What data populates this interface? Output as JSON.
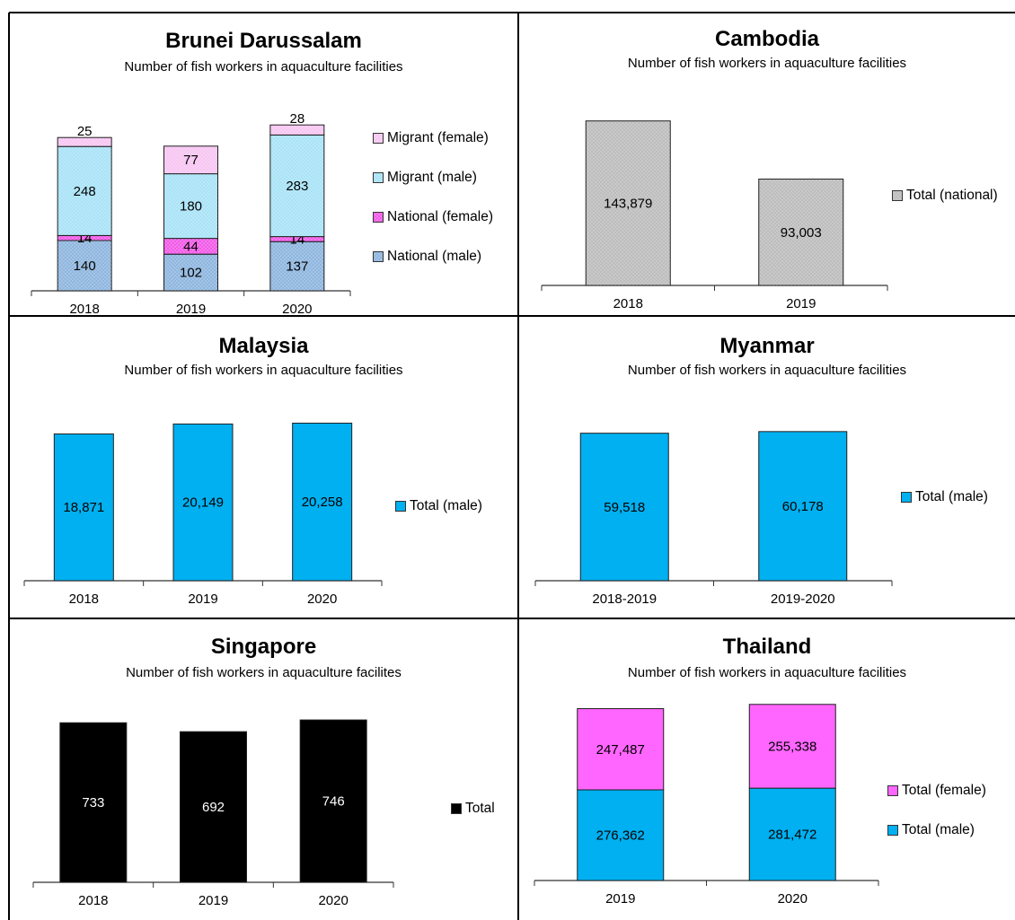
{
  "colors": {
    "national_male": "#8fb6df",
    "national_female": "#f25ce8",
    "migrant_male": "#a9e3f7",
    "migrant_female": "#f7c6f2",
    "cambodia_total": "#bdbdbd",
    "blue": "#00b0f0",
    "black": "#000000",
    "magenta": "#ff66ff"
  },
  "chart_data": [
    {
      "type": "bar",
      "stacked": true,
      "title": "Brunei Darussalam",
      "subtitle": "Number of fish workers in aquaculture facilities",
      "categories": [
        "2018",
        "2019",
        "2020"
      ],
      "series": [
        {
          "name": "National (male)",
          "values": [
            140,
            102,
            137
          ],
          "color": "#8fb6df",
          "pattern": "dots"
        },
        {
          "name": "National (female)",
          "values": [
            14,
            44,
            14
          ],
          "color": "#f25ce8",
          "pattern": "dots"
        },
        {
          "name": "Migrant (male)",
          "values": [
            248,
            180,
            283
          ],
          "color": "#a9e3f7",
          "pattern": "dots"
        },
        {
          "name": "Migrant (female)",
          "values": [
            25,
            77,
            28
          ],
          "color": "#f7c6f2",
          "pattern": "dots"
        }
      ],
      "legend_order": [
        "Migrant (female)",
        "Migrant (male)",
        "National (female)",
        "National (male)"
      ],
      "legend": "right",
      "ylim": [
        0,
        500
      ]
    },
    {
      "type": "bar",
      "title": "Cambodia",
      "subtitle": "Number of fish workers in aquaculture facilities",
      "categories": [
        "2018",
        "2019"
      ],
      "series": [
        {
          "name": "Total (national)",
          "values": [
            143879,
            93003
          ],
          "labels": [
            "143,879",
            "93,003"
          ],
          "color": "#bdbdbd",
          "pattern": "dots"
        }
      ],
      "legend": "right",
      "ylim": [
        0,
        168000
      ]
    },
    {
      "type": "bar",
      "title": "Malaysia",
      "subtitle": "Number of fish workers in aquaculture facilities",
      "categories": [
        "2018",
        "2019",
        "2020"
      ],
      "series": [
        {
          "name": "Total (male)",
          "values": [
            18871,
            20149,
            20258
          ],
          "labels": [
            "18,871",
            "20,149",
            "20,258"
          ],
          "color": "#00b0f0"
        }
      ],
      "legend": "right",
      "ylim": [
        0,
        22500
      ]
    },
    {
      "type": "bar",
      "title": "Myanmar",
      "subtitle": "Number of fish workers in aquaculture facilities",
      "categories": [
        "2018-2019",
        "2019-2020"
      ],
      "series": [
        {
          "name": "Total (male)",
          "values": [
            59518,
            60178
          ],
          "labels": [
            "59,518",
            "60,178"
          ],
          "color": "#00b0f0"
        }
      ],
      "legend": "right",
      "ylim": [
        0,
        67000
      ]
    },
    {
      "type": "bar",
      "title": "Singapore",
      "subtitle": "Number of fish workers in aquaculture facilites",
      "categories": [
        "2018",
        "2019",
        "2020"
      ],
      "series": [
        {
          "name": "Total",
          "values": [
            733,
            692,
            746
          ],
          "labels": [
            "733",
            "692",
            "746"
          ],
          "color": "#000000",
          "label_color": "#ffffff"
        }
      ],
      "legend": "right",
      "ylim": [
        0,
        800
      ]
    },
    {
      "type": "bar",
      "stacked": true,
      "title": "Thailand",
      "subtitle": "Number of fish workers in aquaculture facilities",
      "categories": [
        "2019",
        "2020"
      ],
      "series": [
        {
          "name": "Total (male)",
          "values": [
            276362,
            281472
          ],
          "labels": [
            "276,362",
            "281,472"
          ],
          "color": "#00b0f0"
        },
        {
          "name": "Total (female)",
          "values": [
            247487,
            255338
          ],
          "labels": [
            "247,487",
            "255,338"
          ],
          "color": "#ff66ff"
        }
      ],
      "legend_order": [
        "Total (female)",
        "Total (male)"
      ],
      "legend": "right",
      "ylim": [
        0,
        580000
      ]
    }
  ]
}
